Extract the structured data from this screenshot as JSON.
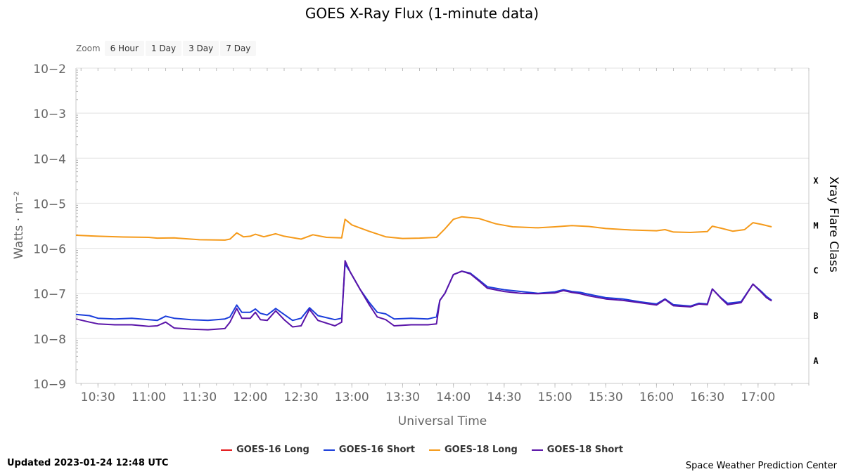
{
  "chart_data": {
    "type": "line",
    "title": "GOES X-Ray Flux (1-minute data)",
    "xlabel": "Universal Time",
    "ylabel": "Watts · m⁻²",
    "y2label": "Xray Flare Class",
    "yscale": "log",
    "ylim": [
      "1e-9",
      "1e-2"
    ],
    "y_tick_labels": [
      "10−2",
      "10−3",
      "10−4",
      "10−5",
      "10−6",
      "10−7",
      "10−8",
      "10−9"
    ],
    "x_tick_labels": [
      "10:30",
      "11:00",
      "11:30",
      "12:00",
      "12:30",
      "13:00",
      "13:30",
      "14:00",
      "14:30",
      "15:00",
      "15:30",
      "16:00",
      "16:30",
      "17:00"
    ],
    "xlim": [
      "10:17",
      "17:30"
    ],
    "flare_classes": [
      "X",
      "M",
      "C",
      "B",
      "A"
    ],
    "grid": "horizontal",
    "legend_position": "bottom",
    "series": [
      {
        "name": "GOES-16 Long",
        "color": "#e41a1c",
        "points": []
      },
      {
        "name": "GOES-16 Short",
        "color": "#1a3ddb",
        "points": [
          [
            "10:17",
            3.4e-08
          ],
          [
            "10:25",
            3.2e-08
          ],
          [
            "10:30",
            2.8e-08
          ],
          [
            "10:40",
            2.7e-08
          ],
          [
            "10:50",
            2.8e-08
          ],
          [
            "11:00",
            2.6e-08
          ],
          [
            "11:05",
            2.5e-08
          ],
          [
            "11:10",
            3.1e-08
          ],
          [
            "11:15",
            2.8e-08
          ],
          [
            "11:25",
            2.6e-08
          ],
          [
            "11:35",
            2.5e-08
          ],
          [
            "11:45",
            2.7e-08
          ],
          [
            "11:48",
            3e-08
          ],
          [
            "11:52",
            5.5e-08
          ],
          [
            "11:55",
            3.8e-08
          ],
          [
            "12:00",
            3.8e-08
          ],
          [
            "12:03",
            4.5e-08
          ],
          [
            "12:06",
            3.6e-08
          ],
          [
            "12:10",
            3.3e-08
          ],
          [
            "12:15",
            4.6e-08
          ],
          [
            "12:20",
            3.4e-08
          ],
          [
            "12:25",
            2.5e-08
          ],
          [
            "12:30",
            2.8e-08
          ],
          [
            "12:35",
            4.8e-08
          ],
          [
            "12:40",
            3.2e-08
          ],
          [
            "12:50",
            2.6e-08
          ],
          [
            "12:54",
            2.8e-08
          ],
          [
            "12:56",
            4.5e-07
          ],
          [
            "12:59",
            3e-07
          ],
          [
            "13:05",
            1.2e-07
          ],
          [
            "13:10",
            6.5e-08
          ],
          [
            "13:15",
            3.8e-08
          ],
          [
            "13:20",
            3.5e-08
          ],
          [
            "13:25",
            2.7e-08
          ],
          [
            "13:35",
            2.8e-08
          ],
          [
            "13:45",
            2.7e-08
          ],
          [
            "13:50",
            3e-08
          ],
          [
            "13:52",
            7e-08
          ],
          [
            "13:55",
            1e-07
          ],
          [
            "14:00",
            2.6e-07
          ],
          [
            "14:05",
            3.1e-07
          ],
          [
            "14:10",
            2.8e-07
          ],
          [
            "14:15",
            2e-07
          ],
          [
            "14:20",
            1.4e-07
          ],
          [
            "14:30",
            1.2e-07
          ],
          [
            "14:40",
            1.1e-07
          ],
          [
            "14:50",
            1e-07
          ],
          [
            "15:00",
            1.08e-07
          ],
          [
            "15:05",
            1.2e-07
          ],
          [
            "15:10",
            1.1e-07
          ],
          [
            "15:15",
            1.05e-07
          ],
          [
            "15:20",
            9.5e-08
          ],
          [
            "15:30",
            8e-08
          ],
          [
            "15:40",
            7.5e-08
          ],
          [
            "15:50",
            6.5e-08
          ],
          [
            "16:00",
            5.8e-08
          ],
          [
            "16:05",
            7.5e-08
          ],
          [
            "16:10",
            5.6e-08
          ],
          [
            "16:20",
            5.2e-08
          ],
          [
            "16:25",
            6e-08
          ],
          [
            "16:30",
            5.8e-08
          ],
          [
            "16:33",
            1.25e-07
          ],
          [
            "16:38",
            8e-08
          ],
          [
            "16:42",
            6e-08
          ],
          [
            "16:50",
            6.5e-08
          ],
          [
            "16:57",
            1.6e-07
          ],
          [
            "17:02",
            1.1e-07
          ],
          [
            "17:05",
            8.5e-08
          ],
          [
            "17:08",
            7e-08
          ]
        ]
      },
      {
        "name": "GOES-18 Long",
        "color": "#f59a1a",
        "points": [
          [
            "10:17",
            1.95e-06
          ],
          [
            "10:30",
            1.85e-06
          ],
          [
            "10:45",
            1.78e-06
          ],
          [
            "11:00",
            1.75e-06
          ],
          [
            "11:05",
            1.68e-06
          ],
          [
            "11:15",
            1.7e-06
          ],
          [
            "11:30",
            1.55e-06
          ],
          [
            "11:45",
            1.52e-06
          ],
          [
            "11:48",
            1.6e-06
          ],
          [
            "11:52",
            2.2e-06
          ],
          [
            "11:56",
            1.8e-06
          ],
          [
            "12:00",
            1.85e-06
          ],
          [
            "12:03",
            2.05e-06
          ],
          [
            "12:08",
            1.8e-06
          ],
          [
            "12:15",
            2.1e-06
          ],
          [
            "12:20",
            1.85e-06
          ],
          [
            "12:30",
            1.6e-06
          ],
          [
            "12:37",
            2e-06
          ],
          [
            "12:45",
            1.75e-06
          ],
          [
            "12:54",
            1.7e-06
          ],
          [
            "12:56",
            4.4e-06
          ],
          [
            "13:00",
            3.3e-06
          ],
          [
            "13:10",
            2.4e-06
          ],
          [
            "13:20",
            1.8e-06
          ],
          [
            "13:30",
            1.65e-06
          ],
          [
            "13:40",
            1.68e-06
          ],
          [
            "13:50",
            1.75e-06
          ],
          [
            "13:55",
            2.7e-06
          ],
          [
            "14:00",
            4.4e-06
          ],
          [
            "14:05",
            5e-06
          ],
          [
            "14:15",
            4.6e-06
          ],
          [
            "14:25",
            3.5e-06
          ],
          [
            "14:35",
            3e-06
          ],
          [
            "14:50",
            2.85e-06
          ],
          [
            "15:00",
            3e-06
          ],
          [
            "15:10",
            3.2e-06
          ],
          [
            "15:20",
            3.05e-06
          ],
          [
            "15:30",
            2.75e-06
          ],
          [
            "15:45",
            2.55e-06
          ],
          [
            "16:00",
            2.45e-06
          ],
          [
            "16:05",
            2.6e-06
          ],
          [
            "16:10",
            2.3e-06
          ],
          [
            "16:20",
            2.25e-06
          ],
          [
            "16:30",
            2.35e-06
          ],
          [
            "16:33",
            3.1e-06
          ],
          [
            "16:38",
            2.8e-06
          ],
          [
            "16:45",
            2.4e-06
          ],
          [
            "16:52",
            2.6e-06
          ],
          [
            "16:57",
            3.7e-06
          ],
          [
            "17:02",
            3.4e-06
          ],
          [
            "17:08",
            3e-06
          ]
        ]
      },
      {
        "name": "GOES-18 Short",
        "color": "#5a14a8",
        "points": [
          [
            "10:17",
            2.7e-08
          ],
          [
            "10:25",
            2.3e-08
          ],
          [
            "10:30",
            2.1e-08
          ],
          [
            "10:40",
            2e-08
          ],
          [
            "10:50",
            2e-08
          ],
          [
            "11:00",
            1.85e-08
          ],
          [
            "11:05",
            1.9e-08
          ],
          [
            "11:10",
            2.3e-08
          ],
          [
            "11:15",
            1.7e-08
          ],
          [
            "11:25",
            1.6e-08
          ],
          [
            "11:35",
            1.55e-08
          ],
          [
            "11:45",
            1.65e-08
          ],
          [
            "11:48",
            2.3e-08
          ],
          [
            "11:52",
            4.6e-08
          ],
          [
            "11:55",
            2.8e-08
          ],
          [
            "12:00",
            2.8e-08
          ],
          [
            "12:03",
            3.8e-08
          ],
          [
            "12:06",
            2.6e-08
          ],
          [
            "12:10",
            2.5e-08
          ],
          [
            "12:15",
            4.1e-08
          ],
          [
            "12:20",
            2.6e-08
          ],
          [
            "12:25",
            1.8e-08
          ],
          [
            "12:30",
            1.9e-08
          ],
          [
            "12:35",
            4.4e-08
          ],
          [
            "12:40",
            2.5e-08
          ],
          [
            "12:50",
            1.9e-08
          ],
          [
            "12:54",
            2.3e-08
          ],
          [
            "12:56",
            5.3e-07
          ],
          [
            "12:59",
            3e-07
          ],
          [
            "13:05",
            1.2e-07
          ],
          [
            "13:10",
            5.8e-08
          ],
          [
            "13:15",
            3e-08
          ],
          [
            "13:20",
            2.6e-08
          ],
          [
            "13:25",
            1.9e-08
          ],
          [
            "13:35",
            2e-08
          ],
          [
            "13:45",
            2e-08
          ],
          [
            "13:50",
            2.1e-08
          ],
          [
            "13:52",
            7e-08
          ],
          [
            "13:55",
            1e-07
          ],
          [
            "14:00",
            2.6e-07
          ],
          [
            "14:05",
            3.1e-07
          ],
          [
            "14:10",
            2.7e-07
          ],
          [
            "14:15",
            1.9e-07
          ],
          [
            "14:20",
            1.3e-07
          ],
          [
            "14:30",
            1.1e-07
          ],
          [
            "14:40",
            1e-07
          ],
          [
            "14:50",
            9.8e-08
          ],
          [
            "15:00",
            1.02e-07
          ],
          [
            "15:05",
            1.15e-07
          ],
          [
            "15:10",
            1.05e-07
          ],
          [
            "15:15",
            9.8e-08
          ],
          [
            "15:20",
            8.8e-08
          ],
          [
            "15:30",
            7.5e-08
          ],
          [
            "15:40",
            7e-08
          ],
          [
            "15:50",
            6.2e-08
          ],
          [
            "16:00",
            5.5e-08
          ],
          [
            "16:05",
            7.3e-08
          ],
          [
            "16:10",
            5.3e-08
          ],
          [
            "16:20",
            5e-08
          ],
          [
            "16:25",
            5.8e-08
          ],
          [
            "16:30",
            5.6e-08
          ],
          [
            "16:33",
            1.25e-07
          ],
          [
            "16:38",
            7.8e-08
          ],
          [
            "16:42",
            5.6e-08
          ],
          [
            "16:50",
            6.2e-08
          ],
          [
            "16:57",
            1.6e-07
          ],
          [
            "17:02",
            1.05e-07
          ],
          [
            "17:05",
            8e-08
          ],
          [
            "17:08",
            6.8e-08
          ]
        ]
      }
    ]
  },
  "zoom": {
    "label": "Zoom",
    "options": [
      "6 Hour",
      "1 Day",
      "3 Day",
      "7 Day"
    ]
  },
  "footer": {
    "updated": "Updated 2023-01-24 12:48 UTC",
    "credit": "Space Weather Prediction Center"
  }
}
